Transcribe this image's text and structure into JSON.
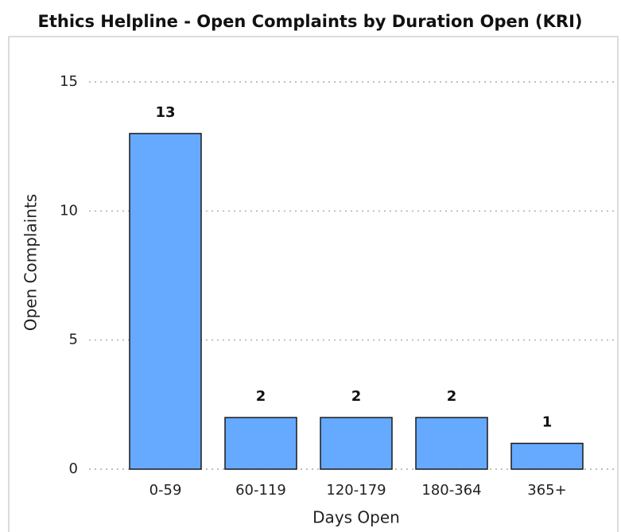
{
  "chart_data": {
    "type": "bar",
    "title": "Ethics Helpline - Open Complaints by Duration Open (KRI)",
    "x_label": "Days Open",
    "y_label": "Open Complaints",
    "categories": [
      "0-59",
      "60-119",
      "120-179",
      "180-364",
      "365+"
    ],
    "values": [
      13,
      2,
      2,
      2,
      1
    ],
    "color": "#66aaff",
    "ylim": [
      0,
      15
    ],
    "yticks": [
      0,
      5,
      10,
      15
    ],
    "grid": true
  }
}
